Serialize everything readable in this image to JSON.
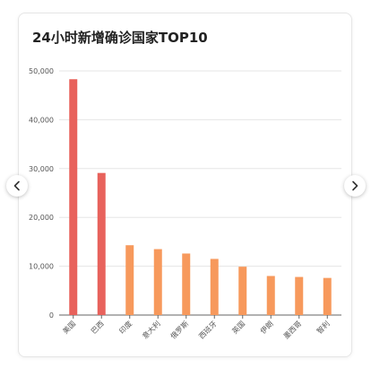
{
  "chart_data": {
    "type": "bar",
    "title": "24小时新增确诊国家TOP10",
    "categories": [
      "美国",
      "巴西",
      "印度",
      "意大利",
      "俄罗斯",
      "西班牙",
      "英国",
      "伊朗",
      "墨西哥",
      "智利"
    ],
    "values": [
      48300,
      29100,
      14300,
      13500,
      12600,
      11500,
      9900,
      8000,
      7800,
      7600
    ],
    "ylim": [
      0,
      50000
    ],
    "yticks": [
      0,
      10000,
      20000,
      30000,
      40000,
      50000
    ],
    "ytick_labels": [
      "0",
      "10,000",
      "20,000",
      "30,000",
      "40,000",
      "50,000"
    ],
    "grid": true,
    "colors": {
      "top": "#e8625c",
      "rest": "#f7995c",
      "grid": "#e5e5e5",
      "axis": "#666666",
      "label": "#555555"
    },
    "highlight_count": 2
  },
  "nav": {
    "prev_icon": "chevron-left-icon",
    "next_icon": "chevron-right-icon"
  }
}
